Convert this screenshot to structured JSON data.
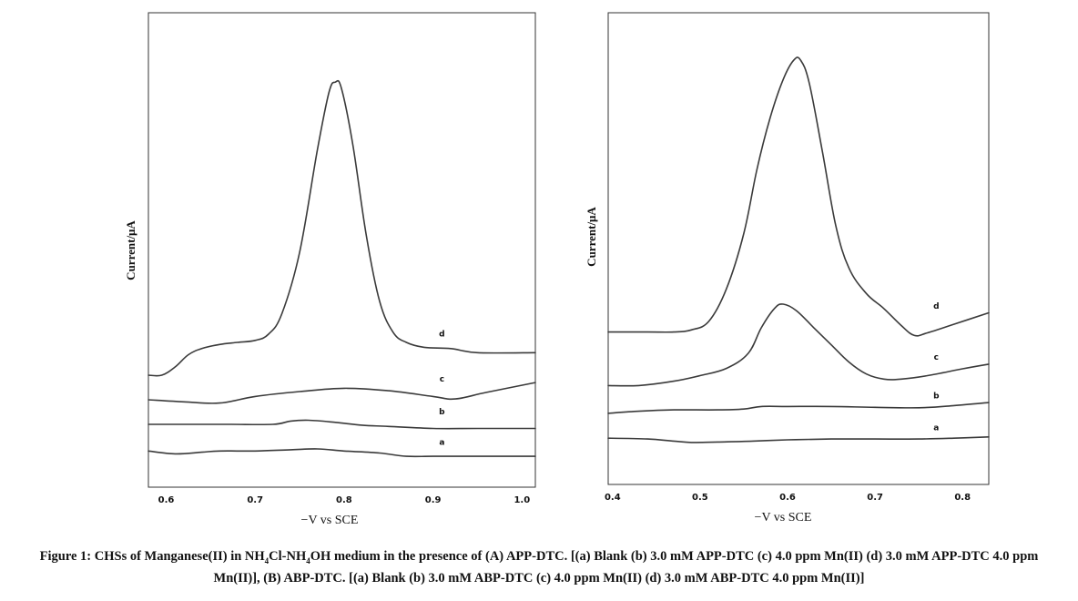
{
  "chart_data": [
    {
      "type": "line",
      "panel": "A",
      "xlabel": "−V vs SCE",
      "ylabel": "Current/μA",
      "xlim": [
        0.58,
        1.015
      ],
      "ylim": [
        0,
        1.0
      ],
      "x_ticks": [
        0.6,
        0.7,
        0.8,
        0.9,
        1.0
      ],
      "x_tick_labels": [
        "0.6",
        "0.7",
        "0.8",
        "0.9",
        "1.0"
      ],
      "grid": false,
      "series": [
        {
          "name": "a",
          "label_at": [
            0.91,
            0.07
          ],
          "points": [
            [
              0.58,
              0.055
            ],
            [
              0.61,
              0.048
            ],
            [
              0.64,
              0.052
            ],
            [
              0.66,
              0.055
            ],
            [
              0.7,
              0.055
            ],
            [
              0.74,
              0.058
            ],
            [
              0.77,
              0.06
            ],
            [
              0.8,
              0.055
            ],
            [
              0.84,
              0.05
            ],
            [
              0.87,
              0.042
            ],
            [
              0.9,
              0.042
            ],
            [
              0.95,
              0.042
            ],
            [
              1.015,
              0.042
            ]
          ]
        },
        {
          "name": "b",
          "label_at": [
            0.91,
            0.145
          ],
          "points": [
            [
              0.58,
              0.12
            ],
            [
              0.62,
              0.12
            ],
            [
              0.67,
              0.12
            ],
            [
              0.72,
              0.12
            ],
            [
              0.74,
              0.128
            ],
            [
              0.76,
              0.13
            ],
            [
              0.79,
              0.125
            ],
            [
              0.82,
              0.118
            ],
            [
              0.85,
              0.115
            ],
            [
              0.9,
              0.11
            ],
            [
              0.95,
              0.11
            ],
            [
              1.015,
              0.11
            ]
          ]
        },
        {
          "name": "c",
          "label_at": [
            0.91,
            0.225
          ],
          "points": [
            [
              0.58,
              0.18
            ],
            [
              0.62,
              0.175
            ],
            [
              0.66,
              0.172
            ],
            [
              0.7,
              0.188
            ],
            [
              0.75,
              0.2
            ],
            [
              0.8,
              0.208
            ],
            [
              0.85,
              0.202
            ],
            [
              0.9,
              0.188
            ],
            [
              0.925,
              0.182
            ],
            [
              0.96,
              0.198
            ],
            [
              1.015,
              0.222
            ]
          ]
        },
        {
          "name": "d",
          "label_at": [
            0.91,
            0.335
          ],
          "points": [
            [
              0.58,
              0.24
            ],
            [
              0.595,
              0.24
            ],
            [
              0.61,
              0.26
            ],
            [
              0.625,
              0.29
            ],
            [
              0.64,
              0.305
            ],
            [
              0.66,
              0.315
            ],
            [
              0.68,
              0.32
            ],
            [
              0.7,
              0.325
            ],
            [
              0.715,
              0.34
            ],
            [
              0.73,
              0.39
            ],
            [
              0.75,
              0.54
            ],
            [
              0.77,
              0.79
            ],
            [
              0.783,
              0.93
            ],
            [
              0.79,
              0.955
            ],
            [
              0.797,
              0.94
            ],
            [
              0.81,
              0.8
            ],
            [
              0.825,
              0.58
            ],
            [
              0.84,
              0.42
            ],
            [
              0.855,
              0.345
            ],
            [
              0.87,
              0.32
            ],
            [
              0.89,
              0.308
            ],
            [
              0.92,
              0.305
            ],
            [
              0.95,
              0.295
            ],
            [
              1.015,
              0.295
            ]
          ]
        }
      ]
    },
    {
      "type": "line",
      "panel": "B",
      "xlabel": "−V vs SCE",
      "ylabel": "Current/μA",
      "xlim": [
        0.395,
        0.83
      ],
      "ylim": [
        0,
        1.0
      ],
      "x_ticks": [
        0.4,
        0.5,
        0.6,
        0.7,
        0.8
      ],
      "x_tick_labels": [
        "0.4",
        "0.5",
        "0.6",
        "0.7",
        "0.8"
      ],
      "grid": false,
      "series": [
        {
          "name": "a",
          "label_at": [
            0.77,
            0.09
          ],
          "points": [
            [
              0.395,
              0.072
            ],
            [
              0.44,
              0.07
            ],
            [
              0.47,
              0.065
            ],
            [
              0.49,
              0.062
            ],
            [
              0.52,
              0.063
            ],
            [
              0.56,
              0.065
            ],
            [
              0.6,
              0.068
            ],
            [
              0.65,
              0.07
            ],
            [
              0.7,
              0.07
            ],
            [
              0.75,
              0.07
            ],
            [
              0.79,
              0.072
            ],
            [
              0.83,
              0.075
            ]
          ]
        },
        {
          "name": "b",
          "label_at": [
            0.77,
            0.165
          ],
          "points": [
            [
              0.395,
              0.13
            ],
            [
              0.43,
              0.135
            ],
            [
              0.47,
              0.138
            ],
            [
              0.52,
              0.138
            ],
            [
              0.55,
              0.14
            ],
            [
              0.57,
              0.146
            ],
            [
              0.6,
              0.146
            ],
            [
              0.65,
              0.146
            ],
            [
              0.7,
              0.144
            ],
            [
              0.75,
              0.143
            ],
            [
              0.79,
              0.148
            ],
            [
              0.83,
              0.155
            ]
          ]
        },
        {
          "name": "c",
          "label_at": [
            0.77,
            0.255
          ],
          "points": [
            [
              0.395,
              0.195
            ],
            [
              0.43,
              0.195
            ],
            [
              0.47,
              0.205
            ],
            [
              0.5,
              0.218
            ],
            [
              0.53,
              0.235
            ],
            [
              0.555,
              0.27
            ],
            [
              0.57,
              0.33
            ],
            [
              0.585,
              0.375
            ],
            [
              0.595,
              0.385
            ],
            [
              0.61,
              0.37
            ],
            [
              0.63,
              0.33
            ],
            [
              0.65,
              0.29
            ],
            [
              0.67,
              0.25
            ],
            [
              0.69,
              0.222
            ],
            [
              0.71,
              0.21
            ],
            [
              0.73,
              0.21
            ],
            [
              0.76,
              0.218
            ],
            [
              0.8,
              0.234
            ],
            [
              0.83,
              0.245
            ]
          ]
        },
        {
          "name": "d",
          "label_at": [
            0.77,
            0.375
          ],
          "points": [
            [
              0.395,
              0.32
            ],
            [
              0.44,
              0.32
            ],
            [
              0.47,
              0.32
            ],
            [
              0.49,
              0.325
            ],
            [
              0.51,
              0.345
            ],
            [
              0.53,
              0.42
            ],
            [
              0.55,
              0.55
            ],
            [
              0.565,
              0.7
            ],
            [
              0.58,
              0.82
            ],
            [
              0.595,
              0.91
            ],
            [
              0.607,
              0.955
            ],
            [
              0.615,
              0.955
            ],
            [
              0.625,
              0.9
            ],
            [
              0.64,
              0.74
            ],
            [
              0.655,
              0.57
            ],
            [
              0.67,
              0.47
            ],
            [
              0.69,
              0.41
            ],
            [
              0.71,
              0.375
            ],
            [
              0.73,
              0.335
            ],
            [
              0.745,
              0.312
            ],
            [
              0.76,
              0.318
            ],
            [
              0.79,
              0.338
            ],
            [
              0.83,
              0.365
            ]
          ]
        }
      ]
    }
  ],
  "caption": {
    "line1_a": "Figure 1: CHSs of Manganese(II) in NH",
    "sub1": "4",
    "line1_b": "Cl-NH",
    "sub2": "4",
    "line1_c": "OH medium in the presence of (A) APP-DTC. [(a) Blank (b) 3.0 mM APP-DTC (c) 4.0 ppm Mn(II) (d) 3.0 mM APP-DTC 4.0 ppm Mn(II)], (B) ABP-DTC. [(a) Blank (b) 3.0 mM ABP-DTC (c) 4.0 ppm Mn(II) (d) 3.0 mM ABP-DTC 4.0 ppm Mn(II)]"
  }
}
